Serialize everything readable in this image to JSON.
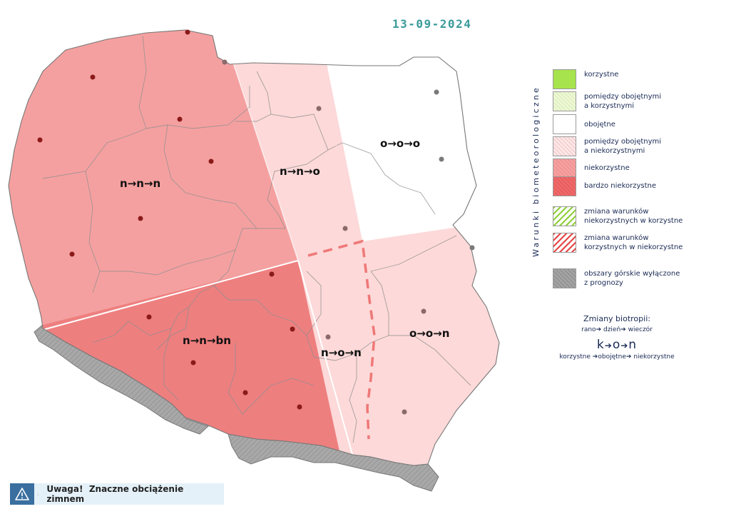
{
  "date": "13-09-2024",
  "zones": [
    {
      "id": "nw",
      "code": "n→n→n",
      "category": "niekorzystne"
    },
    {
      "id": "n-central",
      "code": "n→n→o",
      "category": "pomiędzy obojętnymi a niekorzystnymi"
    },
    {
      "id": "ne",
      "code": "o→o→o",
      "category": "obojętne"
    },
    {
      "id": "sw",
      "code": "n→n→bn",
      "category": "bardzo niekorzystne"
    },
    {
      "id": "s-central",
      "code": "n→o→n",
      "category": "pomiędzy obojętnymi a niekorzystnymi"
    },
    {
      "id": "se",
      "code": "o→o→n",
      "category": "pomiędzy obojętnymi a niekorzystnymi"
    }
  ],
  "legend": {
    "vertical_title": "Warunki biometeorologiczne",
    "items": [
      {
        "label_lines": [
          "korzystne"
        ]
      },
      {
        "label_lines": [
          "pomiędzy obojętnymi",
          "a korzystnymi"
        ]
      },
      {
        "label_lines": [
          "obojętne"
        ]
      },
      {
        "label_lines": [
          "pomiędzy obojętnymi",
          "a niekorzystnymi"
        ]
      },
      {
        "label_lines": [
          "niekorzystne"
        ]
      },
      {
        "label_lines": [
          "bardzo niekorzystne"
        ]
      },
      {
        "label_lines": [
          "zmiana warunków",
          "niekorzystnych w korzystne"
        ]
      },
      {
        "label_lines": [
          "zmiana warunków",
          "korzystnych w niekorzystne"
        ]
      },
      {
        "label_lines": [
          "obszary górskie wyłączone",
          "z prognozy"
        ]
      }
    ]
  },
  "biotropy": {
    "title": "Zmiany biotropii:",
    "sub": [
      "rano",
      "dzień",
      "wieczór"
    ],
    "big": [
      "k",
      "o",
      "n"
    ],
    "foot": [
      "korzystne",
      "obojętne",
      "niekorzystne"
    ]
  },
  "warning": {
    "icon": "warning-triangle-icon",
    "label": "Uwaga!",
    "text": "Znaczne obciążenie zimnem"
  },
  "colors": {
    "niekorzystne": "#f5a0a0",
    "bardzo_niekorzystne": "#ee7f7f",
    "pomiedzy_obojetnymi_a_niekorzystnymi": "#fdd9d9",
    "obojetne": "#ffffff",
    "gory": "#a4a4a4",
    "date_color": "#3a9a9a"
  }
}
